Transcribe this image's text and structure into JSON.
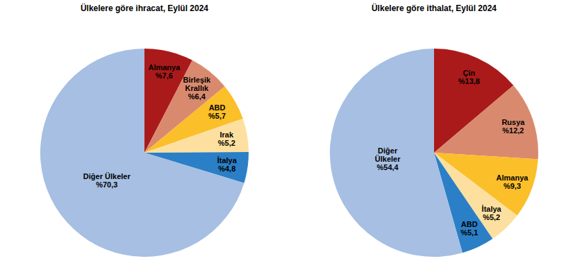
{
  "chart_data": [
    {
      "type": "pie",
      "title": "Ülkelere göre ihracat, Eylül 2024",
      "categories": [
        "Almanya",
        "Birleşik Krallık",
        "ABD",
        "Irak",
        "İtalya",
        "Diğer Ülkeler"
      ],
      "values": [
        7.6,
        6.4,
        5.7,
        5.2,
        4.8,
        70.3
      ],
      "value_labels": [
        "%7,6",
        "%6,4",
        "%5,7",
        "%5,2",
        "%4,8",
        "%70,3"
      ],
      "colors": [
        "#ab1a1a",
        "#d98a6e",
        "#fbbf2a",
        "#fde0a0",
        "#2b7fc6",
        "#a6bfe3"
      ],
      "data_labels": true
    },
    {
      "type": "pie",
      "title": "Ülkelere göre ithalat, Eylül 2024",
      "categories": [
        "Çin",
        "Rusya",
        "Almanya",
        "İtalya",
        "ABD",
        "Diğer Ülkeler"
      ],
      "values": [
        13.8,
        12.2,
        9.3,
        5.2,
        5.1,
        54.4
      ],
      "value_labels": [
        "%13,8",
        "%12,2",
        "%9,3",
        "%5,2",
        "%5,1",
        "%54,4"
      ],
      "colors": [
        "#ab1a1a",
        "#d98a6e",
        "#fbbf2a",
        "#fde0a0",
        "#2b7fc6",
        "#a6bfe3"
      ],
      "data_labels": true
    }
  ]
}
